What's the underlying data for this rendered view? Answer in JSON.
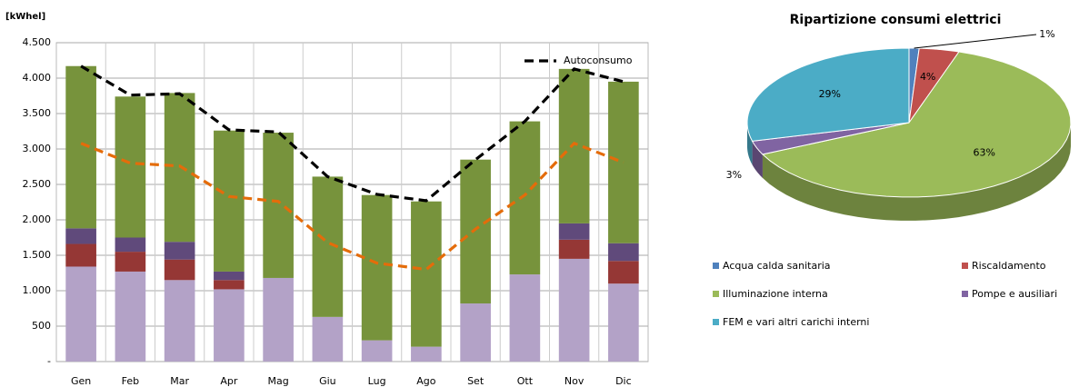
{
  "chart_data": [
    {
      "type": "bar",
      "stacked": true,
      "y_label": "[kWhel]",
      "categories": [
        "Gen",
        "Feb",
        "Mar",
        "Apr",
        "Mag",
        "Giu",
        "Lug",
        "Ago",
        "Set",
        "Ott",
        "Nov",
        "Dic"
      ],
      "series": [
        {
          "color": "#b3a2c7",
          "values": [
            1340,
            1270,
            1150,
            1020,
            1180,
            630,
            300,
            210,
            820,
            1230,
            1450,
            1100
          ]
        },
        {
          "color": "#953735",
          "values": [
            320,
            280,
            290,
            130,
            0,
            0,
            0,
            0,
            0,
            0,
            270,
            320
          ]
        },
        {
          "color": "#604a7b",
          "values": [
            220,
            200,
            250,
            120,
            0,
            0,
            0,
            0,
            0,
            0,
            230,
            250
          ]
        },
        {
          "color": "#77933c",
          "values": [
            2290,
            1990,
            2100,
            1990,
            2050,
            1980,
            2050,
            2050,
            2030,
            2160,
            2180,
            2280
          ]
        },
        {
          "type": "line",
          "name": "Autoconsumo",
          "color": "#000000",
          "values": [
            4170,
            3760,
            3780,
            3270,
            3240,
            2610,
            2360,
            2270,
            2850,
            3390,
            4130,
            3950
          ]
        },
        {
          "type": "line",
          "color": "#e46c0a",
          "values": [
            3080,
            2800,
            2760,
            2330,
            2260,
            1680,
            1390,
            1300,
            1870,
            2350,
            3080,
            2810
          ]
        }
      ],
      "ylim": [
        0,
        4500
      ],
      "yticks": [
        {
          "value": 0,
          "label": "-"
        },
        500,
        {
          "value": 1000,
          "label": "1.000"
        },
        {
          "value": 1500,
          "label": "1.500"
        },
        {
          "value": 2000,
          "label": "2.000"
        },
        {
          "value": 2500,
          "label": "2.500"
        },
        {
          "value": 3000,
          "label": "3.000"
        },
        {
          "value": 3500,
          "label": "3.500"
        },
        {
          "value": 4000,
          "label": "4.000"
        },
        {
          "value": 4500,
          "label": "4.500"
        }
      ],
      "grid": true,
      "legend": "top-right"
    },
    {
      "type": "pie",
      "title": "Ripartizione consumi elettrici",
      "three_d": true,
      "categories": [
        "Acqua calda sanitaria",
        "Riscaldamento",
        "Illuminazione interna",
        "Pompe e ausiliari",
        "FEM e vari altri carichi interni"
      ],
      "values": [
        1,
        4,
        63,
        3,
        29
      ],
      "value_labels": [
        "1%",
        "4%",
        "63%",
        "3%",
        "29%"
      ],
      "colors": [
        "#4f81bd",
        "#c0504d",
        "#9bbb59",
        "#8064a2",
        "#4bacc6"
      ],
      "legend": "bottom"
    }
  ]
}
